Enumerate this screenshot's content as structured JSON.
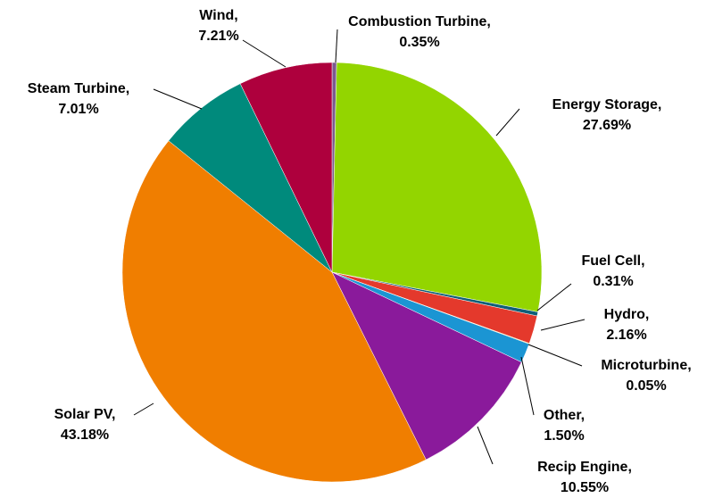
{
  "chart_data": {
    "type": "pie",
    "categories": [
      "Combustion Turbine,",
      "Energy Storage,",
      "Fuel Cell,",
      "Hydro,",
      "Microturbine,",
      "Other,",
      "Recip Engine,",
      "Solar PV,",
      "Steam Turbine,",
      "Wind,"
    ],
    "values": [
      0.35,
      27.69,
      0.31,
      2.16,
      0.05,
      1.5,
      10.55,
      43.18,
      7.01,
      7.21
    ],
    "value_labels": [
      "0.35%",
      "27.69%",
      "0.31%",
      "2.16%",
      "0.05%",
      "1.50%",
      "10.55%",
      "43.18%",
      "7.01%",
      "7.21%"
    ],
    "colors": [
      "#7b5a8e",
      "#93d500",
      "#0f5f78",
      "#e4392c",
      "#f2c200",
      "#1b95d3",
      "#8a1a9b",
      "#f07e00",
      "#008a7c",
      "#ae003d"
    ]
  }
}
